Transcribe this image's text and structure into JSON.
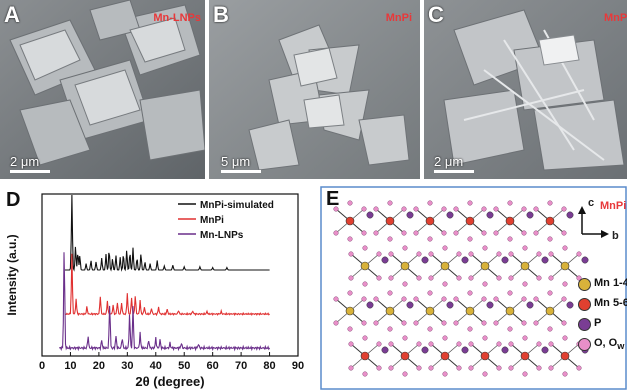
{
  "panels": {
    "a": {
      "letter": "A",
      "tag": "Mn-LNPs",
      "scale": "2 μm"
    },
    "b": {
      "letter": "B",
      "tag": "MnPi",
      "scale": "5 μm"
    },
    "c": {
      "letter": "C",
      "tag": "MnPi",
      "scale": "2 μm"
    },
    "d": {
      "letter": "D"
    },
    "e": {
      "letter": "E",
      "tag": "MnPi",
      "axis_c": "c",
      "axis_b": "b",
      "legend": [
        {
          "label": "Mn 1-4",
          "color": "#d8b23a"
        },
        {
          "label": "Mn 5-6",
          "color": "#e04030"
        },
        {
          "label": "P",
          "color": "#7a3d94"
        },
        {
          "label": "O, O",
          "sub": "w",
          "color": "#e88fc8"
        }
      ]
    }
  },
  "chart_data": {
    "type": "line",
    "xlabel": "2θ (degree)",
    "ylabel": "Intensity (a.u.)",
    "xlim": [
      0,
      90
    ],
    "xticks": [
      "0",
      "10",
      "20",
      "30",
      "40",
      "50",
      "60",
      "70",
      "80",
      "90"
    ],
    "legend_position": "top-right",
    "series": [
      {
        "name": "MnPi-simulated",
        "color": "#111111",
        "peaks": [
          [
            10.5,
            1.0
          ],
          [
            11.8,
            0.3
          ],
          [
            12.6,
            0.22
          ],
          [
            13.3,
            0.18
          ],
          [
            15.5,
            0.08
          ],
          [
            17.2,
            0.12
          ],
          [
            19.0,
            0.1
          ],
          [
            21.0,
            0.15
          ],
          [
            22.5,
            0.2
          ],
          [
            23.6,
            0.25
          ],
          [
            24.8,
            0.14
          ],
          [
            26.0,
            0.18
          ],
          [
            27.5,
            0.16
          ],
          [
            28.6,
            0.2
          ],
          [
            29.8,
            0.25
          ],
          [
            30.9,
            0.22
          ],
          [
            32.0,
            0.28
          ],
          [
            33.4,
            0.15
          ],
          [
            34.8,
            0.2
          ],
          [
            36.2,
            0.1
          ],
          [
            38.0,
            0.08
          ],
          [
            40.5,
            0.12
          ],
          [
            43.0,
            0.05
          ],
          [
            46.0,
            0.06
          ],
          [
            50.0,
            0.04
          ],
          [
            55.5,
            0.04
          ],
          [
            60.0,
            0.03
          ],
          [
            65.0,
            0.03
          ]
        ]
      },
      {
        "name": "MnPi",
        "color": "#e03030",
        "peaks": [
          [
            10.5,
            1.0
          ],
          [
            12.0,
            0.25
          ],
          [
            15.8,
            0.12
          ],
          [
            20.5,
            0.3
          ],
          [
            23.0,
            0.22
          ],
          [
            25.0,
            0.15
          ],
          [
            26.5,
            0.2
          ],
          [
            28.0,
            0.18
          ],
          [
            30.0,
            0.35
          ],
          [
            31.5,
            0.28
          ],
          [
            32.8,
            0.3
          ],
          [
            34.5,
            0.22
          ],
          [
            36.0,
            0.12
          ],
          [
            38.5,
            0.1
          ],
          [
            41.0,
            0.12
          ],
          [
            44.0,
            0.08
          ],
          [
            48.0,
            0.06
          ],
          [
            53.0,
            0.05
          ],
          [
            58.0,
            0.04
          ],
          [
            63.0,
            0.04
          ]
        ]
      },
      {
        "name": "Mn-LNPs",
        "color": "#6a2f8a",
        "peaks": [
          [
            7.8,
            1.0
          ],
          [
            16.2,
            0.12
          ],
          [
            21.0,
            0.08
          ],
          [
            23.8,
            0.45
          ],
          [
            26.0,
            0.12
          ],
          [
            28.2,
            0.1
          ],
          [
            30.8,
            0.35
          ],
          [
            32.0,
            0.42
          ],
          [
            34.5,
            0.15
          ],
          [
            37.5,
            0.08
          ],
          [
            40.0,
            0.1
          ],
          [
            41.5,
            0.08
          ],
          [
            45.0,
            0.05
          ],
          [
            49.0,
            0.05
          ],
          [
            55.0,
            0.04
          ]
        ]
      }
    ]
  }
}
